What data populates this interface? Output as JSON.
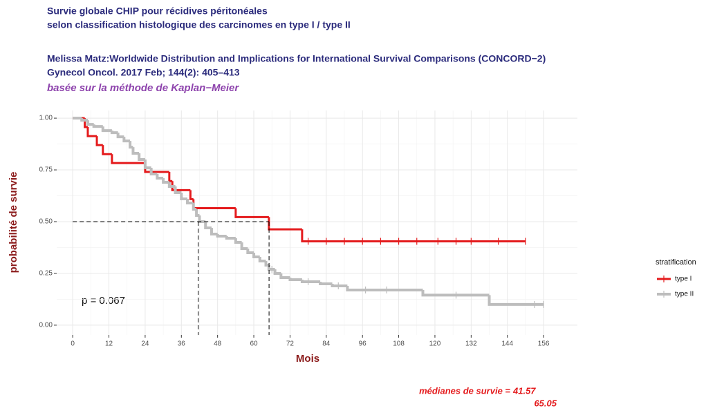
{
  "chart_data": {
    "type": "line",
    "step": true,
    "title": [
      "Survie globale CHIP pour récidives péritonéales",
      "selon classification histologique des carcinomes en  type I / type II"
    ],
    "subtitle": [
      "Melissa Matz:Worldwide Distribution and Implications for International Survival Comparisons (CONCORD−2)",
      "Gynecol Oncol. 2017 Feb; 144(2): 405–413"
    ],
    "method": "basée sur la méthode de Kaplan−Meier",
    "x_label": "Mois",
    "y_label": "probabilité de survie",
    "legend_title": "stratification",
    "pvalue_text": "p = 0.067",
    "median_text": "médianes de survie =",
    "medians": [
      41.57,
      65.05
    ],
    "median_level": 0.5,
    "xlim": [
      -5.3,
      167.2
    ],
    "ylim": [
      -0.047,
      1.037
    ],
    "xticks": [
      0,
      12,
      24,
      36,
      48,
      60,
      72,
      84,
      96,
      108,
      120,
      132,
      144,
      156
    ],
    "yticks": [
      {
        "value": 0,
        "label": "0.00"
      },
      {
        "value": 0.25,
        "label": "0.25"
      },
      {
        "value": 0.5,
        "label": "0.50"
      },
      {
        "value": 0.75,
        "label": "0.75"
      },
      {
        "value": 1,
        "label": "1.00"
      }
    ],
    "grid": true,
    "series": [
      {
        "name": "type I",
        "color": "#e41a1c",
        "x": [
          0,
          4,
          5,
          8,
          10,
          13,
          24,
          32,
          33,
          39,
          40,
          54,
          65,
          76,
          150
        ],
        "values": [
          1.0,
          0.957,
          0.913,
          0.87,
          0.826,
          0.783,
          0.74,
          0.696,
          0.652,
          0.609,
          0.565,
          0.522,
          0.463,
          0.405,
          0.405
        ],
        "censored": [
          78,
          84,
          90,
          96,
          102,
          108,
          114,
          121,
          127,
          132,
          141,
          150
        ]
      },
      {
        "name": "type II",
        "color": "#bdbdbd",
        "x": [
          0,
          3,
          5,
          7,
          10,
          13,
          15,
          17,
          19,
          20,
          22,
          24,
          26,
          28,
          30,
          32,
          34,
          36,
          38,
          40,
          41,
          42,
          44,
          46,
          48,
          51,
          54,
          56,
          58,
          60,
          62,
          64,
          65,
          67,
          69,
          72,
          76,
          82,
          86,
          91,
          116,
          138,
          156
        ],
        "values": [
          1.0,
          0.99,
          0.97,
          0.96,
          0.94,
          0.93,
          0.91,
          0.89,
          0.86,
          0.83,
          0.8,
          0.76,
          0.73,
          0.71,
          0.69,
          0.67,
          0.64,
          0.61,
          0.59,
          0.56,
          0.53,
          0.5,
          0.47,
          0.44,
          0.43,
          0.42,
          0.4,
          0.37,
          0.35,
          0.33,
          0.31,
          0.29,
          0.27,
          0.25,
          0.23,
          0.22,
          0.21,
          0.2,
          0.19,
          0.17,
          0.145,
          0.1,
          0.1
        ],
        "censored": [
          66,
          78,
          88,
          97,
          104,
          127,
          153,
          156
        ]
      }
    ]
  }
}
